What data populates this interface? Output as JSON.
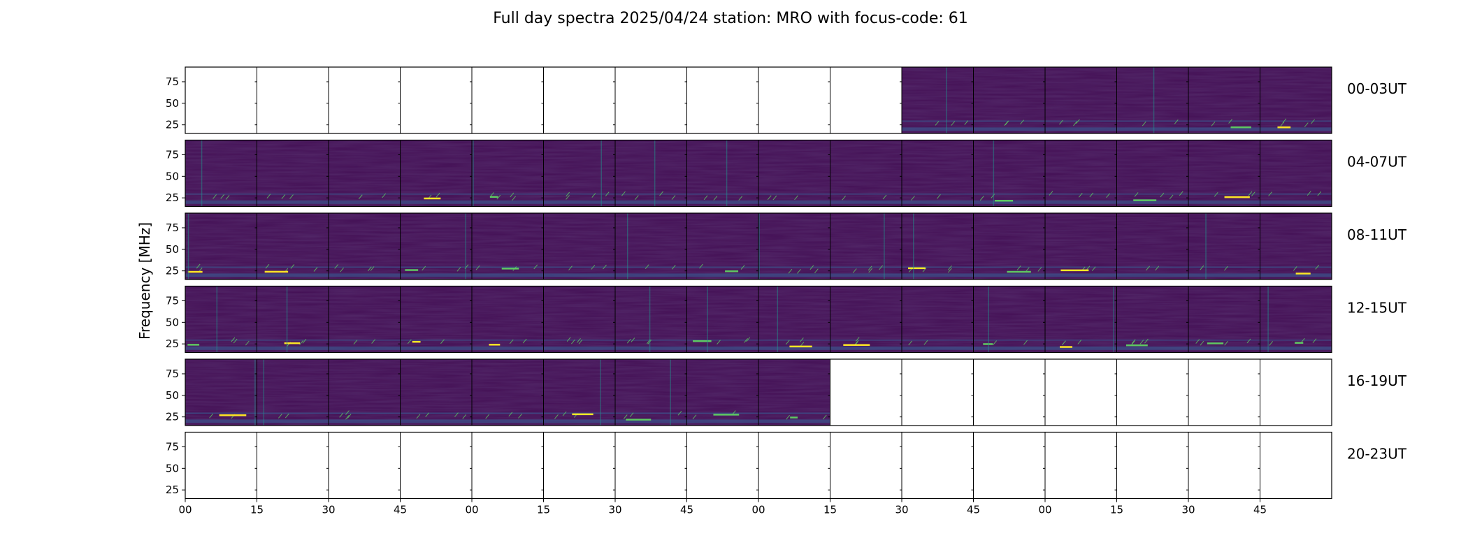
{
  "chart_data": {
    "type": "heatmap",
    "title": "Full day spectra 2025/04/24 station: MRO with focus-code: 61",
    "ylabel": "Frequency [MHz]",
    "xlabel": "",
    "ylim": [
      15,
      92
    ],
    "y_ticks": [
      "25",
      "50",
      "75"
    ],
    "x_tick_labels": [
      "00",
      "15",
      "30",
      "45",
      "00",
      "15",
      "30",
      "45",
      "00",
      "15",
      "30",
      "45",
      "00",
      "15",
      "30",
      "45"
    ],
    "grid": false,
    "legend": "none",
    "colormap": "viridis",
    "colors": {
      "background_low": "#440f55",
      "mid": "#3b528b",
      "teal": "#21918c",
      "high": "#5ec962",
      "peak": "#fde725"
    },
    "panels_per_row": 16,
    "panel_minutes": 15,
    "rows": [
      {
        "label": "00-03UT",
        "filled": [
          false,
          false,
          false,
          false,
          false,
          false,
          false,
          false,
          false,
          false,
          true,
          true,
          true,
          true,
          true,
          true
        ]
      },
      {
        "label": "04-07UT",
        "filled": [
          true,
          true,
          true,
          true,
          true,
          true,
          true,
          true,
          true,
          true,
          true,
          true,
          true,
          true,
          true,
          true
        ]
      },
      {
        "label": "08-11UT",
        "filled": [
          true,
          true,
          true,
          true,
          true,
          true,
          true,
          true,
          true,
          true,
          true,
          true,
          true,
          true,
          true,
          true
        ]
      },
      {
        "label": "12-15UT",
        "filled": [
          true,
          true,
          true,
          true,
          true,
          true,
          true,
          true,
          true,
          true,
          true,
          true,
          true,
          true,
          true,
          true
        ]
      },
      {
        "label": "16-19UT",
        "filled": [
          true,
          true,
          true,
          true,
          true,
          true,
          true,
          true,
          true,
          false,
          false,
          false,
          false,
          false,
          false,
          false
        ]
      },
      {
        "label": "20-23UT",
        "filled": [
          false,
          false,
          false,
          false,
          false,
          false,
          false,
          false,
          false,
          false,
          false,
          false,
          false,
          false,
          false,
          false
        ]
      }
    ]
  }
}
